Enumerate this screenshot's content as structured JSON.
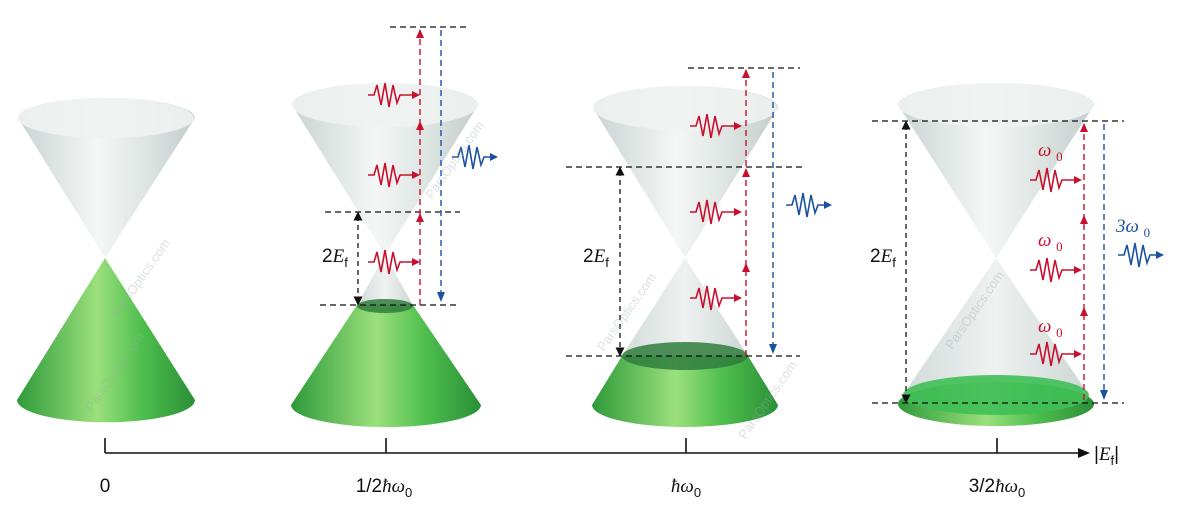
{
  "axis": {
    "label": "|E_f|",
    "ticks": [
      "0",
      "1/2ħω0",
      "ħω0",
      "3/2ħω0"
    ]
  },
  "panels": [
    {
      "id": "p0",
      "fermi_label": "",
      "photon_labels": [],
      "emission_label": ""
    },
    {
      "id": "p1",
      "fermi_label": "2E_f",
      "photon_labels": [],
      "emission_label": ""
    },
    {
      "id": "p2",
      "fermi_label": "2E_f",
      "photon_labels": [],
      "emission_label": ""
    },
    {
      "id": "p3",
      "fermi_label": "2E_f",
      "photon_labels": [
        "ω0",
        "ω0",
        "ω0"
      ],
      "emission_label": "3ω0"
    }
  ],
  "watermark": "ParsOptics.com",
  "colors": {
    "absorption": "#c8102e",
    "emission": "#1a52a0",
    "filled_band": "#3fae4a",
    "empty_band": "#dfe7e6",
    "axis": "#111111"
  }
}
